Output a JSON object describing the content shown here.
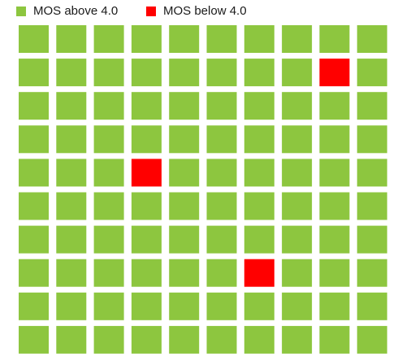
{
  "chart_data": {
    "type": "waffle",
    "title": "",
    "rows": 10,
    "cols": 10,
    "legend_position": "top-left",
    "series": [
      {
        "name": "MOS above 4.0",
        "color": "#8DC63F",
        "count": 97
      },
      {
        "name": "MOS below 4.0",
        "color": "#FF0000",
        "count": 3
      }
    ],
    "highlighted_cells": [
      {
        "row": 2,
        "col": 9,
        "series": "MOS below 4.0"
      },
      {
        "row": 5,
        "col": 4,
        "series": "MOS below 4.0"
      },
      {
        "row": 8,
        "col": 7,
        "series": "MOS below 4.0"
      }
    ]
  }
}
